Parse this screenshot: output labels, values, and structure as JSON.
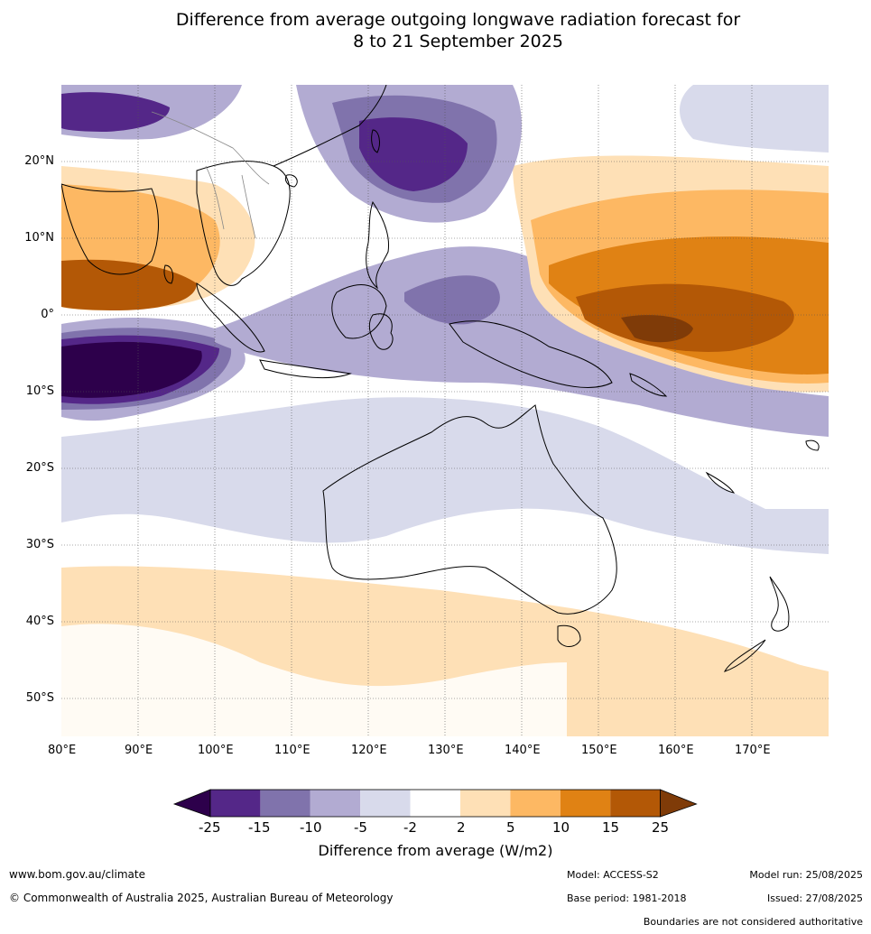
{
  "title": {
    "line1": "Difference from average outgoing longwave radiation forecast for",
    "line2": "8 to 21 September 2025"
  },
  "map": {
    "latitude_labels": [
      "20°N",
      "10°N",
      "0°",
      "10°S",
      "20°S",
      "30°S",
      "40°S",
      "50°S"
    ],
    "longitude_labels": [
      "80°E",
      "90°E",
      "100°E",
      "110°E",
      "120°E",
      "130°E",
      "140°E",
      "150°E",
      "160°E",
      "170°E"
    ],
    "colors": {
      "le_m25": "#2d004b",
      "m25_m15": "#542788",
      "m15_m10": "#8073ac",
      "m10_m5": "#b2abd2",
      "m5_m2": "#d8daeb",
      "m2_2": "#ffffff",
      "p2_p5": "#fee0b6",
      "p5_p10": "#fdb863",
      "p10_p15": "#e08214",
      "p15_p25": "#b35806",
      "ge_p25": "#7f3b08",
      "land_outline": "#000000",
      "boundary": "#888888",
      "grid": "#555555"
    }
  },
  "legend": {
    "ticks": [
      "-25",
      "-15",
      "-10",
      "-5",
      "-2",
      "2",
      "5",
      "10",
      "15",
      "25"
    ],
    "label": "Difference from average (W/m2)"
  },
  "footer": {
    "website": "www.bom.gov.au/climate",
    "copyright": "© Commonwealth of Australia 2025, Australian Bureau of Meteorology",
    "model": "Model: ACCESS-S2",
    "base_period": "Base period: 1981-2018",
    "model_run": "Model run: 25/08/2025",
    "issued": "Issued: 27/08/2025",
    "disclaimer": "Boundaries are not considered authoritative"
  }
}
